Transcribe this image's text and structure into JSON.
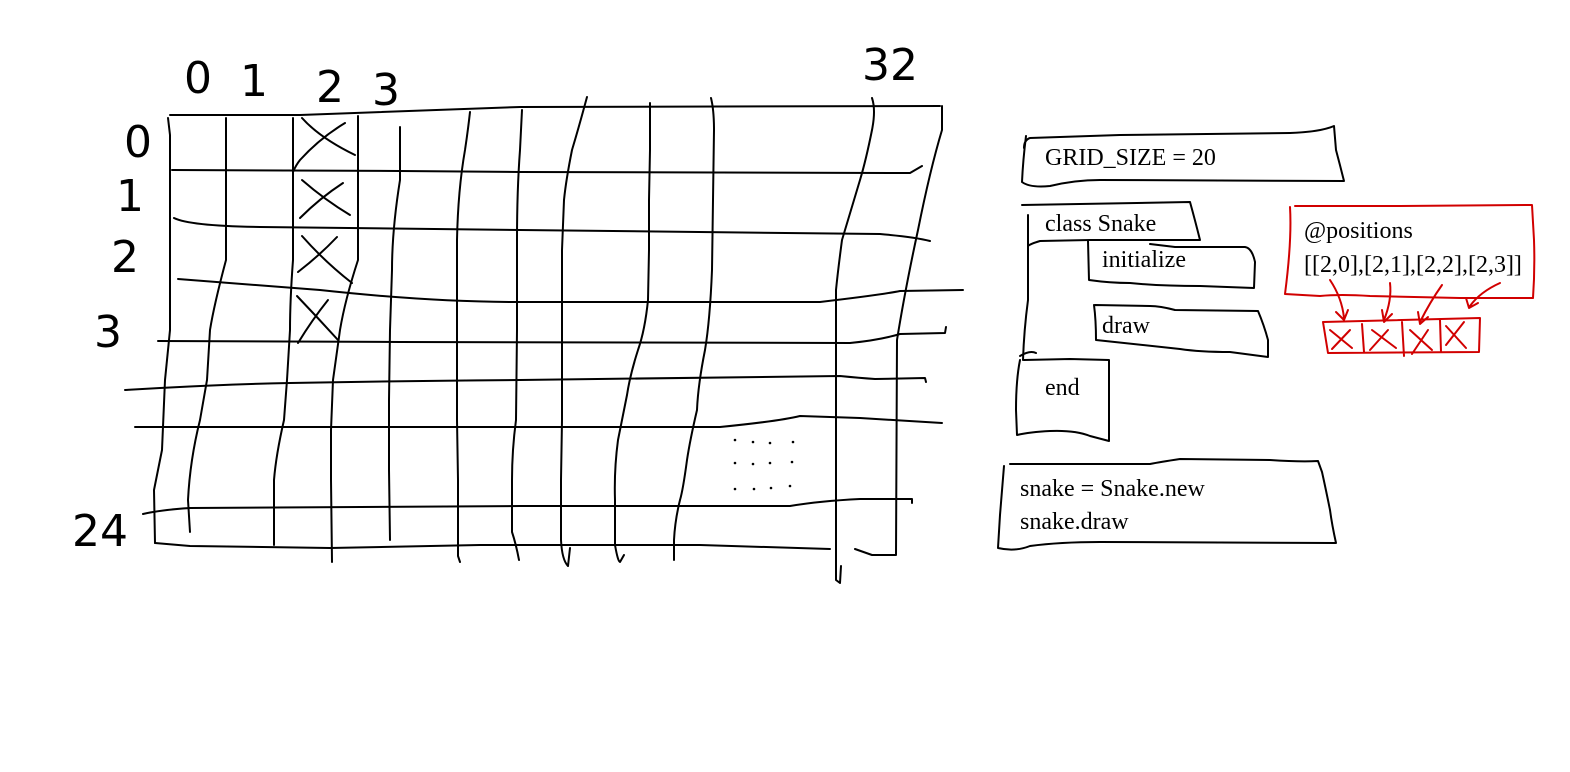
{
  "grid_labels": {
    "col_0": "0",
    "col_1": "1",
    "col_2": "2",
    "col_3": "3",
    "col_last": "32",
    "row_0": "0",
    "row_1": "1",
    "row_2": "2",
    "row_3": "3",
    "row_last": "24"
  },
  "code": {
    "grid_size": "GRID_SIZE = 20",
    "class_decl": "class Snake",
    "initialize": "initialize",
    "draw": "draw",
    "end": "end",
    "usage_new": "snake = Snake.new",
    "usage_draw": "snake.draw"
  },
  "positions": {
    "name": "@positions",
    "value": "[[2,0],[2,1],[2,2],[2,3]]"
  },
  "colors": {
    "ink": "#000000",
    "highlight": "#d10000"
  }
}
